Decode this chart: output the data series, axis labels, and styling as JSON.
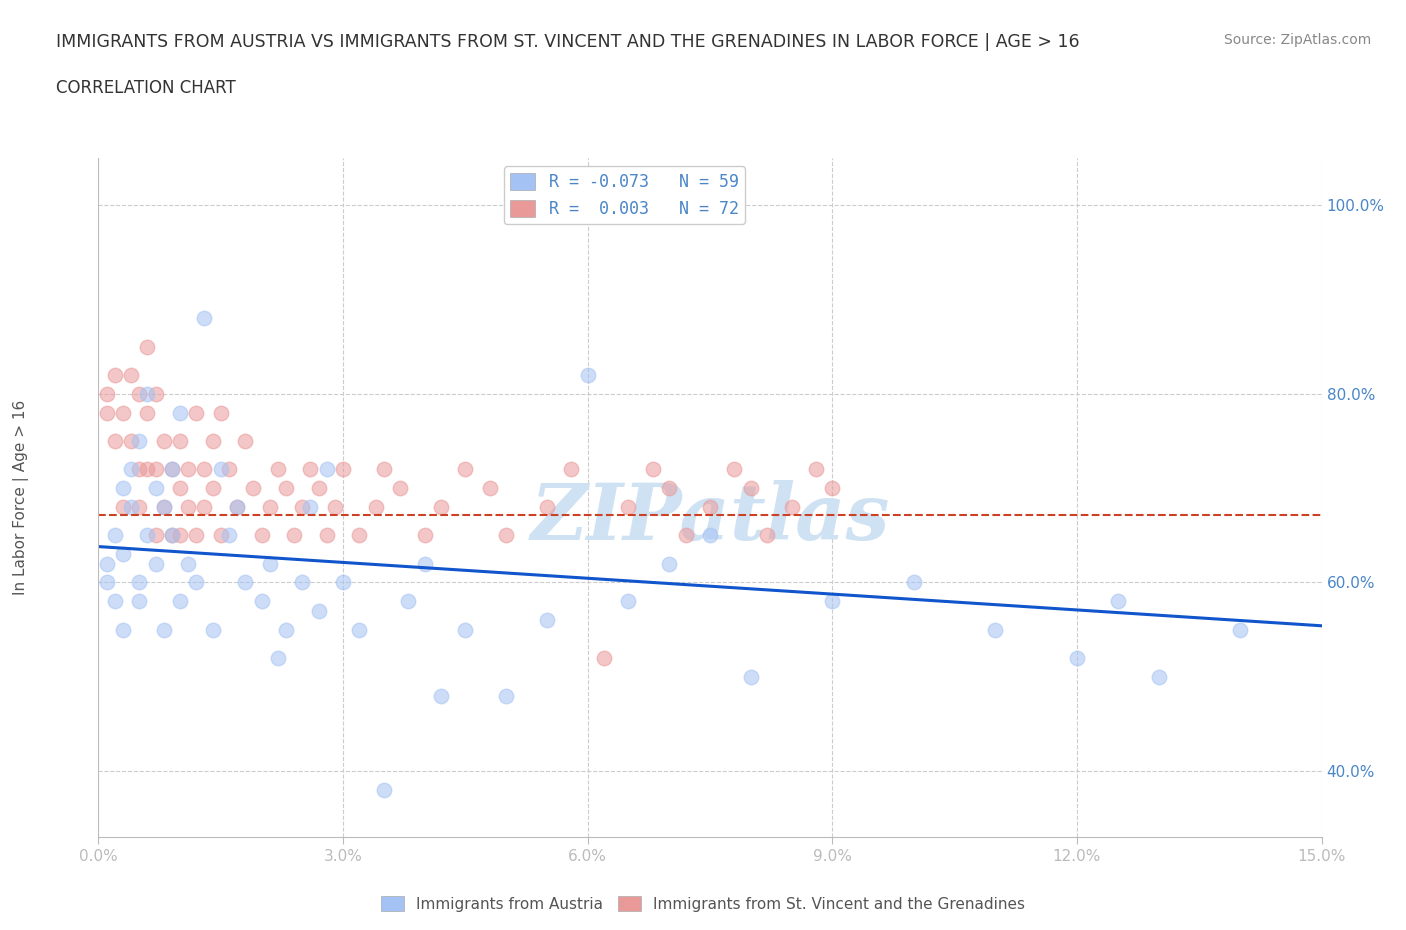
{
  "title": "IMMIGRANTS FROM AUSTRIA VS IMMIGRANTS FROM ST. VINCENT AND THE GRENADINES IN LABOR FORCE | AGE > 16",
  "subtitle": "CORRELATION CHART",
  "source": "Source: ZipAtlas.com",
  "ylabel": "In Labor Force | Age > 16",
  "xlim": [
    0.0,
    0.15
  ],
  "ylim": [
    0.33,
    1.05
  ],
  "xticks": [
    0.0,
    0.03,
    0.06,
    0.09,
    0.12,
    0.15
  ],
  "xticklabels": [
    "0.0%",
    "3.0%",
    "6.0%",
    "9.0%",
    "12.0%",
    "15.0%"
  ],
  "yticks_right": [
    0.4,
    0.6,
    0.8,
    1.0
  ],
  "ytickslabels_right": [
    "40.0%",
    "60.0%",
    "80.0%",
    "100.0%"
  ],
  "austria_color": "#a4c2f4",
  "vincent_color": "#ea9999",
  "austria_R": -0.073,
  "austria_N": 59,
  "vincent_R": 0.003,
  "vincent_N": 72,
  "austria_line_color": "#1155cc",
  "vincent_line_color": "#cc4125",
  "watermark": "ZIPatlas",
  "austria_x": [
    0.001,
    0.001,
    0.002,
    0.002,
    0.003,
    0.003,
    0.003,
    0.004,
    0.004,
    0.005,
    0.005,
    0.005,
    0.006,
    0.006,
    0.007,
    0.007,
    0.008,
    0.008,
    0.009,
    0.009,
    0.01,
    0.01,
    0.011,
    0.012,
    0.013,
    0.014,
    0.015,
    0.016,
    0.017,
    0.018,
    0.02,
    0.021,
    0.022,
    0.023,
    0.025,
    0.026,
    0.027,
    0.028,
    0.03,
    0.032,
    0.035,
    0.038,
    0.04,
    0.042,
    0.045,
    0.05,
    0.055,
    0.06,
    0.065,
    0.07,
    0.075,
    0.08,
    0.09,
    0.1,
    0.11,
    0.12,
    0.125,
    0.13,
    0.14
  ],
  "austria_y": [
    0.62,
    0.6,
    0.65,
    0.58,
    0.7,
    0.63,
    0.55,
    0.68,
    0.72,
    0.6,
    0.75,
    0.58,
    0.65,
    0.8,
    0.62,
    0.7,
    0.55,
    0.68,
    0.65,
    0.72,
    0.58,
    0.78,
    0.62,
    0.6,
    0.88,
    0.55,
    0.72,
    0.65,
    0.68,
    0.6,
    0.58,
    0.62,
    0.52,
    0.55,
    0.6,
    0.68,
    0.57,
    0.72,
    0.6,
    0.55,
    0.38,
    0.58,
    0.62,
    0.48,
    0.55,
    0.48,
    0.56,
    0.82,
    0.58,
    0.62,
    0.65,
    0.5,
    0.58,
    0.6,
    0.55,
    0.52,
    0.58,
    0.5,
    0.55
  ],
  "vincent_x": [
    0.001,
    0.001,
    0.002,
    0.002,
    0.003,
    0.003,
    0.004,
    0.004,
    0.005,
    0.005,
    0.005,
    0.006,
    0.006,
    0.006,
    0.007,
    0.007,
    0.007,
    0.008,
    0.008,
    0.009,
    0.009,
    0.01,
    0.01,
    0.01,
    0.011,
    0.011,
    0.012,
    0.012,
    0.013,
    0.013,
    0.014,
    0.014,
    0.015,
    0.015,
    0.016,
    0.017,
    0.018,
    0.019,
    0.02,
    0.021,
    0.022,
    0.023,
    0.024,
    0.025,
    0.026,
    0.027,
    0.028,
    0.029,
    0.03,
    0.032,
    0.034,
    0.035,
    0.037,
    0.04,
    0.042,
    0.045,
    0.048,
    0.05,
    0.055,
    0.058,
    0.062,
    0.065,
    0.068,
    0.07,
    0.072,
    0.075,
    0.078,
    0.08,
    0.082,
    0.085,
    0.088,
    0.09
  ],
  "vincent_y": [
    0.8,
    0.78,
    0.75,
    0.82,
    0.68,
    0.78,
    0.82,
    0.75,
    0.72,
    0.8,
    0.68,
    0.85,
    0.72,
    0.78,
    0.65,
    0.8,
    0.72,
    0.68,
    0.75,
    0.65,
    0.72,
    0.7,
    0.75,
    0.65,
    0.68,
    0.72,
    0.78,
    0.65,
    0.72,
    0.68,
    0.75,
    0.7,
    0.78,
    0.65,
    0.72,
    0.68,
    0.75,
    0.7,
    0.65,
    0.68,
    0.72,
    0.7,
    0.65,
    0.68,
    0.72,
    0.7,
    0.65,
    0.68,
    0.72,
    0.65,
    0.68,
    0.72,
    0.7,
    0.65,
    0.68,
    0.72,
    0.7,
    0.65,
    0.68,
    0.72,
    0.52,
    0.68,
    0.72,
    0.7,
    0.65,
    0.68,
    0.72,
    0.7,
    0.65,
    0.68,
    0.72,
    0.7
  ],
  "background_color": "#ffffff",
  "title_color": "#333333",
  "tick_color": "#4a86c8",
  "watermark_color": "#cfe2f3",
  "austria_trend_y0": 0.638,
  "austria_trend_y1": 0.554,
  "vincent_trend_y": 0.672
}
